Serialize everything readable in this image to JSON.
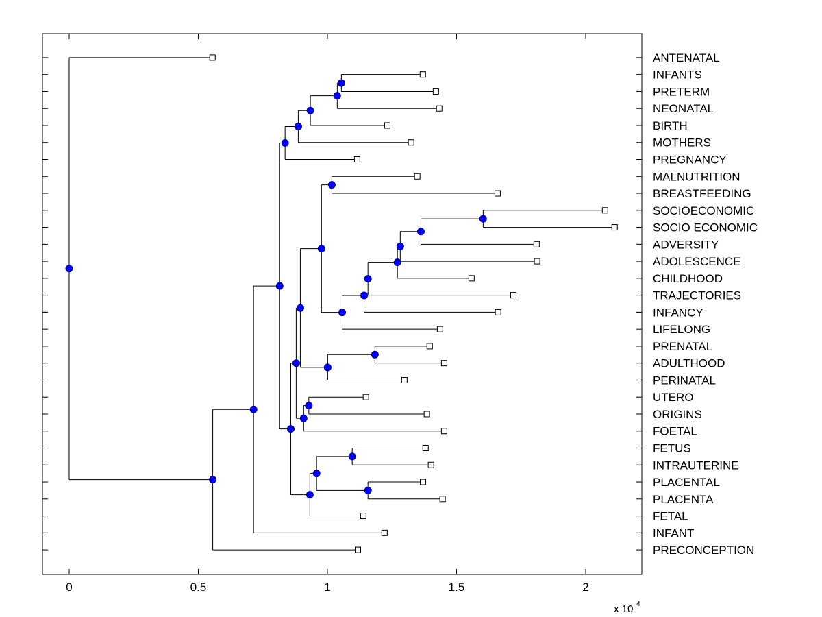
{
  "chart_data": {
    "type": "dendrogram",
    "title": "",
    "xlabel": "",
    "ylabel": "",
    "x_multiplier_label": "x 10",
    "x_multiplier_exponent": "4",
    "xlim": [
      -1034,
      22175
    ],
    "ylim_rows": [
      -0.41,
      31.45
    ],
    "xticks": [
      0,
      5000,
      10000,
      15000,
      20000
    ],
    "xtick_labels": [
      "0",
      "0.5",
      "1",
      "1.5",
      "2"
    ],
    "grid": false,
    "node_color": "#0000ff",
    "line_color": "#000000",
    "leaves": [
      {
        "id": "ANTENATAL",
        "label": "ANTENATAL",
        "row": 1,
        "x": 5550
      },
      {
        "id": "INFANTS",
        "label": "INFANTS",
        "row": 2,
        "x": 13695
      },
      {
        "id": "PRETERM",
        "label": "PRETERM",
        "row": 3,
        "x": 14200
      },
      {
        "id": "NEONATAL",
        "label": "NEONATAL",
        "row": 4,
        "x": 14330
      },
      {
        "id": "BIRTH",
        "label": "BIRTH",
        "row": 5,
        "x": 12320
      },
      {
        "id": "MOTHERS",
        "label": "MOTHERS",
        "row": 6,
        "x": 13240
      },
      {
        "id": "PREGNANCY",
        "label": "PREGNANCY",
        "row": 7,
        "x": 11150
      },
      {
        "id": "MALNUTRITION",
        "label": "MALNUTRITION",
        "row": 8,
        "x": 13480
      },
      {
        "id": "BREASTFEEDING",
        "label": "BREASTFEEDING",
        "row": 9,
        "x": 16590
      },
      {
        "id": "SOCIOECONOMIC",
        "label": "SOCIOECONOMIC",
        "row": 10,
        "x": 20750
      },
      {
        "id": "SOCIO_ECONOMIC",
        "label": "SOCIO ECONOMIC",
        "row": 11,
        "x": 21120
      },
      {
        "id": "ADVERSITY",
        "label": "ADVERSITY",
        "row": 12,
        "x": 18100
      },
      {
        "id": "ADOLESCENCE",
        "label": "ADOLESCENCE",
        "row": 13,
        "x": 18120
      },
      {
        "id": "CHILDHOOD",
        "label": "CHILDHOOD",
        "row": 14,
        "x": 15580
      },
      {
        "id": "TRAJECTORIES",
        "label": "TRAJECTORIES",
        "row": 15,
        "x": 17200
      },
      {
        "id": "INFANCY",
        "label": "INFANCY",
        "row": 16,
        "x": 16610
      },
      {
        "id": "LIFELONG",
        "label": "LIFELONG",
        "row": 17,
        "x": 14360
      },
      {
        "id": "PRENATAL",
        "label": "PRENATAL",
        "row": 18,
        "x": 13960
      },
      {
        "id": "ADULTHOOD",
        "label": "ADULTHOOD",
        "row": 19,
        "x": 14520
      },
      {
        "id": "PERINATAL",
        "label": "PERINATAL",
        "row": 20,
        "x": 12980
      },
      {
        "id": "UTERO",
        "label": "UTERO",
        "row": 21,
        "x": 11490
      },
      {
        "id": "ORIGINS",
        "label": "ORIGINS",
        "row": 22,
        "x": 13850
      },
      {
        "id": "FOETAL",
        "label": "FOETAL",
        "row": 23,
        "x": 14520
      },
      {
        "id": "FETUS",
        "label": "FETUS",
        "row": 24,
        "x": 13800
      },
      {
        "id": "INTRAUTERINE",
        "label": "INTRAUTERINE",
        "row": 25,
        "x": 14010
      },
      {
        "id": "PLACENTAL",
        "label": "PLACENTAL",
        "row": 26,
        "x": 13700
      },
      {
        "id": "PLACENTA",
        "label": "PLACENTA",
        "row": 27,
        "x": 14460
      },
      {
        "id": "FETAL",
        "label": "FETAL",
        "row": 28,
        "x": 11390
      },
      {
        "id": "INFANT",
        "label": "INFANT",
        "row": 29,
        "x": 12210
      },
      {
        "id": "PRECONCEPTION",
        "label": "PRECONCEPTION",
        "row": 30,
        "x": 11180
      }
    ],
    "nodes": [
      {
        "id": "n_infants_preterm",
        "x": 10540,
        "children": [
          "INFANTS",
          "PRETERM"
        ]
      },
      {
        "id": "n_neonatal",
        "x": 10380,
        "children": [
          "n_infants_preterm",
          "NEONATAL"
        ]
      },
      {
        "id": "n_birth",
        "x": 9340,
        "children": [
          "n_neonatal",
          "BIRTH"
        ]
      },
      {
        "id": "n_mothers",
        "x": 8870,
        "children": [
          "n_birth",
          "MOTHERS"
        ]
      },
      {
        "id": "n_pregnancy",
        "x": 8360,
        "children": [
          "n_mothers",
          "PREGNANCY"
        ]
      },
      {
        "id": "n_malnutrition_breastfeeding",
        "x": 10170,
        "children": [
          "MALNUTRITION",
          "BREASTFEEDING"
        ]
      },
      {
        "id": "n_socioeconomic",
        "x": 16030,
        "children": [
          "SOCIOECONOMIC",
          "SOCIO_ECONOMIC"
        ]
      },
      {
        "id": "n_adversity",
        "x": 13620,
        "children": [
          "n_socioeconomic",
          "ADVERSITY"
        ]
      },
      {
        "id": "n_adolescence",
        "x": 12820,
        "children": [
          "n_adversity",
          "ADOLESCENCE"
        ]
      },
      {
        "id": "n_childhood",
        "x": 12710,
        "children": [
          "n_adolescence",
          "CHILDHOOD"
        ]
      },
      {
        "id": "n_trajectories",
        "x": 11570,
        "children": [
          "n_childhood",
          "TRAJECTORIES"
        ]
      },
      {
        "id": "n_infancy",
        "x": 11420,
        "children": [
          "n_trajectories",
          "INFANCY"
        ]
      },
      {
        "id": "n_lifelong",
        "x": 10570,
        "children": [
          "n_infancy",
          "LIFELONG"
        ]
      },
      {
        "id": "n_life_course",
        "x": 9770,
        "children": [
          "n_malnutrition_breastfeeding",
          "n_lifelong"
        ]
      },
      {
        "id": "n_prenatal_adulthood",
        "x": 11840,
        "children": [
          "PRENATAL",
          "ADULTHOOD"
        ]
      },
      {
        "id": "n_perinatal",
        "x": 10010,
        "children": [
          "n_prenatal_adulthood",
          "PERINATAL"
        ]
      },
      {
        "id": "n_life_perinatal",
        "x": 8950,
        "children": [
          "n_life_course",
          "n_perinatal"
        ]
      },
      {
        "id": "n_utero_origins",
        "x": 9280,
        "children": [
          "UTERO",
          "ORIGINS"
        ]
      },
      {
        "id": "n_foetal",
        "x": 9080,
        "children": [
          "n_utero_origins",
          "FOETAL"
        ]
      },
      {
        "id": "n_mid",
        "x": 8790,
        "children": [
          "n_life_perinatal",
          "n_foetal"
        ]
      },
      {
        "id": "n_fetus_intrauterine",
        "x": 10960,
        "children": [
          "FETUS",
          "INTRAUTERINE"
        ]
      },
      {
        "id": "n_placental_placenta",
        "x": 11570,
        "children": [
          "PLACENTAL",
          "PLACENTA"
        ]
      },
      {
        "id": "n_fetus_placenta",
        "x": 9580,
        "children": [
          "n_fetus_intrauterine",
          "n_placental_placenta"
        ]
      },
      {
        "id": "n_fetal",
        "x": 9320,
        "children": [
          "n_fetus_placenta",
          "FETAL"
        ]
      },
      {
        "id": "n_lower",
        "x": 8580,
        "children": [
          "n_mid",
          "n_fetal"
        ]
      },
      {
        "id": "n_main",
        "x": 8150,
        "children": [
          "n_pregnancy",
          "n_lower"
        ]
      },
      {
        "id": "n_infant",
        "x": 7140,
        "children": [
          "n_main",
          "INFANT"
        ]
      },
      {
        "id": "n_preconception",
        "x": 5560,
        "children": [
          "n_infant",
          "PRECONCEPTION"
        ]
      },
      {
        "id": "root",
        "x": 0,
        "children": [
          "ANTENATAL",
          "n_preconception"
        ]
      }
    ]
  }
}
